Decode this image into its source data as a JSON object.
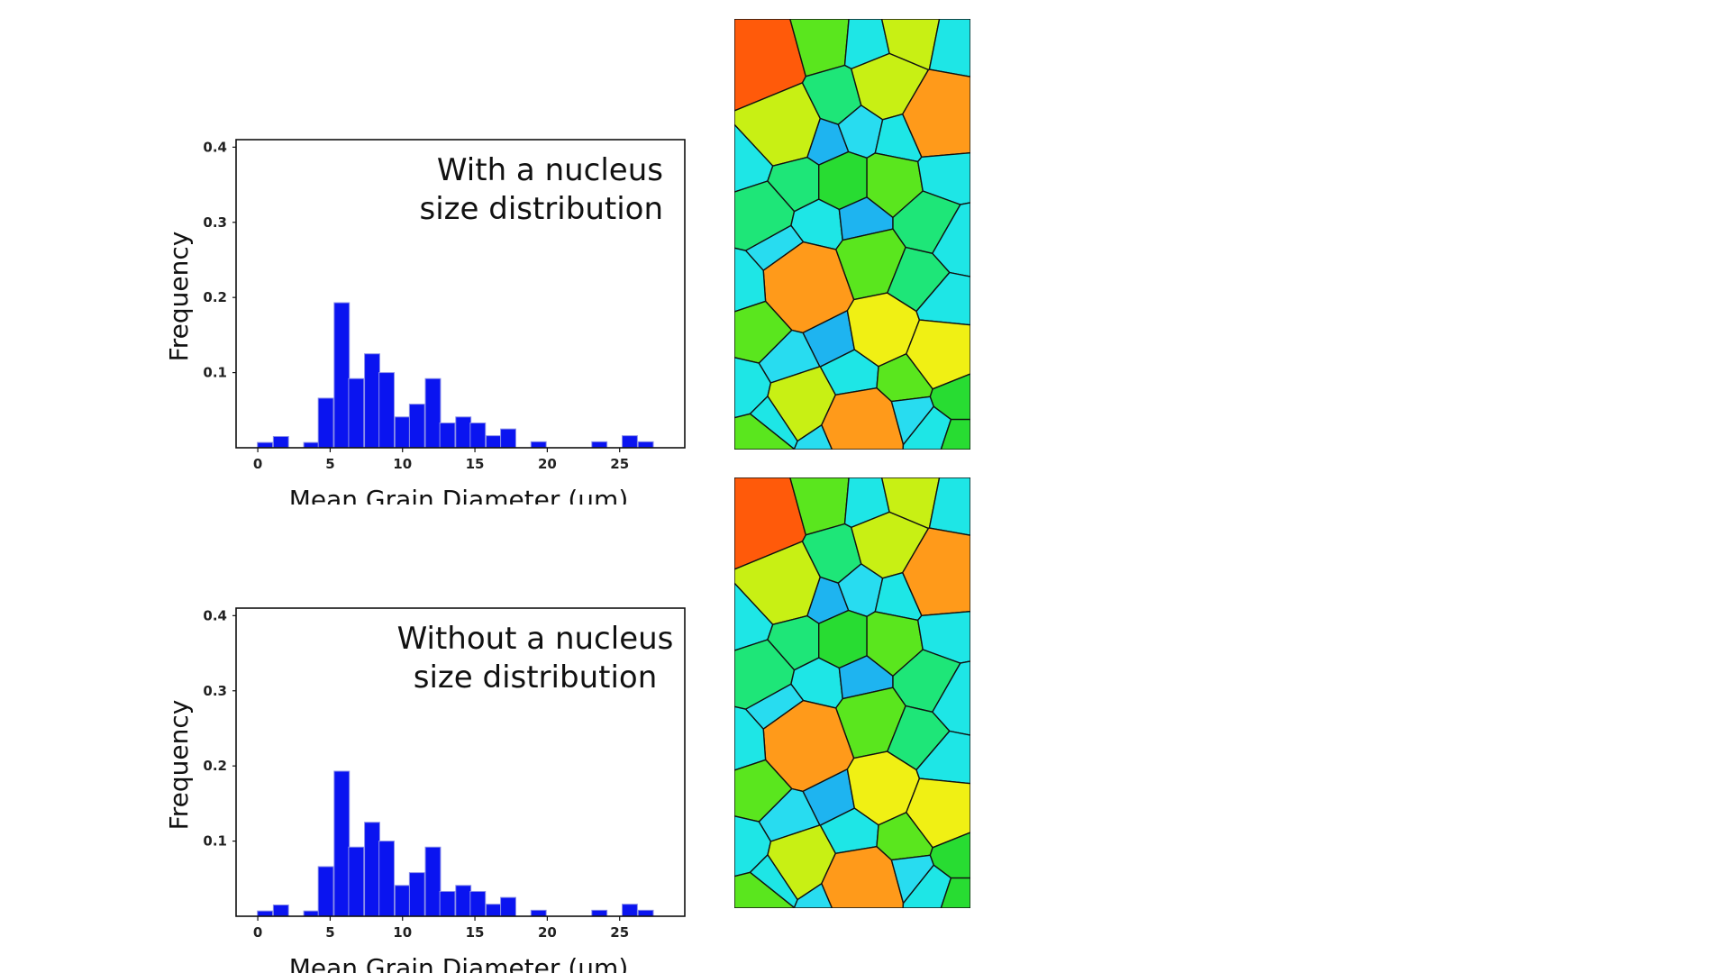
{
  "chart_data": [
    {
      "type": "bar",
      "annotation": [
        "With a nucleus",
        "size distribution"
      ],
      "xlabel": "Mean Grain Diameter (μm)",
      "ylabel": "Frequency",
      "xlim": [
        -1.5,
        29.5
      ],
      "ylim": [
        0,
        0.41
      ],
      "xticks": [
        0,
        5,
        10,
        15,
        20,
        25
      ],
      "yticks": [
        0.1,
        0.2,
        0.3,
        0.4
      ],
      "bar_color": "#0a14f0",
      "bin_width": 1.05,
      "bin_centers": [
        0.5,
        1.6,
        2.6,
        3.7,
        4.7,
        5.8,
        6.8,
        7.9,
        8.9,
        10.0,
        11.0,
        12.1,
        13.1,
        14.2,
        15.2,
        16.3,
        17.3,
        18.4,
        19.4,
        20.5,
        21.5,
        22.6,
        23.6,
        24.7,
        25.7,
        26.8,
        27.8
      ],
      "values": [
        0.007,
        0.015,
        0.0,
        0.007,
        0.066,
        0.193,
        0.092,
        0.125,
        0.1,
        0.041,
        0.058,
        0.092,
        0.033,
        0.041,
        0.033,
        0.016,
        0.025,
        0.0,
        0.008,
        0.0,
        0.0,
        0.0,
        0.008,
        0.0,
        0.016,
        0.008,
        0.0
      ]
    },
    {
      "type": "bar",
      "annotation": [
        "Without a nucleus",
        "size distribution"
      ],
      "xlabel": "Mean Grain Diameter (μm)",
      "ylabel": "Frequency",
      "xlim": [
        -1.5,
        29.5
      ],
      "ylim": [
        0,
        0.41
      ],
      "xticks": [
        0,
        5,
        10,
        15,
        20,
        25
      ],
      "yticks": [
        0.1,
        0.2,
        0.3,
        0.4
      ],
      "bar_color": "#0a14f0",
      "bin_width": 1.05,
      "bin_centers": [
        0.5,
        1.6,
        2.6,
        3.7,
        4.7,
        5.8,
        6.8,
        7.9,
        8.9,
        10.0,
        11.0,
        12.1,
        13.1,
        14.2,
        15.2,
        16.3,
        17.3,
        18.4,
        19.4,
        20.5,
        21.5,
        22.6,
        23.6,
        24.7,
        25.7,
        26.8,
        27.8
      ],
      "values": [
        0.007,
        0.015,
        0.0,
        0.007,
        0.066,
        0.193,
        0.092,
        0.125,
        0.1,
        0.041,
        0.058,
        0.092,
        0.033,
        0.041,
        0.033,
        0.016,
        0.025,
        0.0,
        0.008,
        0.0,
        0.0,
        0.0,
        0.008,
        0.0,
        0.016,
        0.008,
        0.0
      ]
    }
  ],
  "microstructures": {
    "palette": {
      "red_orange": "#ff5a0a",
      "orange": "#ff9a1a",
      "yellow": "#f0f014",
      "yellow_green": "#c8f014",
      "green": "#5ae61e",
      "bright_green": "#28dc32",
      "green_cyan": "#1ee678",
      "cyan": "#1ee6e6",
      "light_cyan": "#28dcf0",
      "blue": "#1eb4f0",
      "outline": "#111111"
    }
  }
}
